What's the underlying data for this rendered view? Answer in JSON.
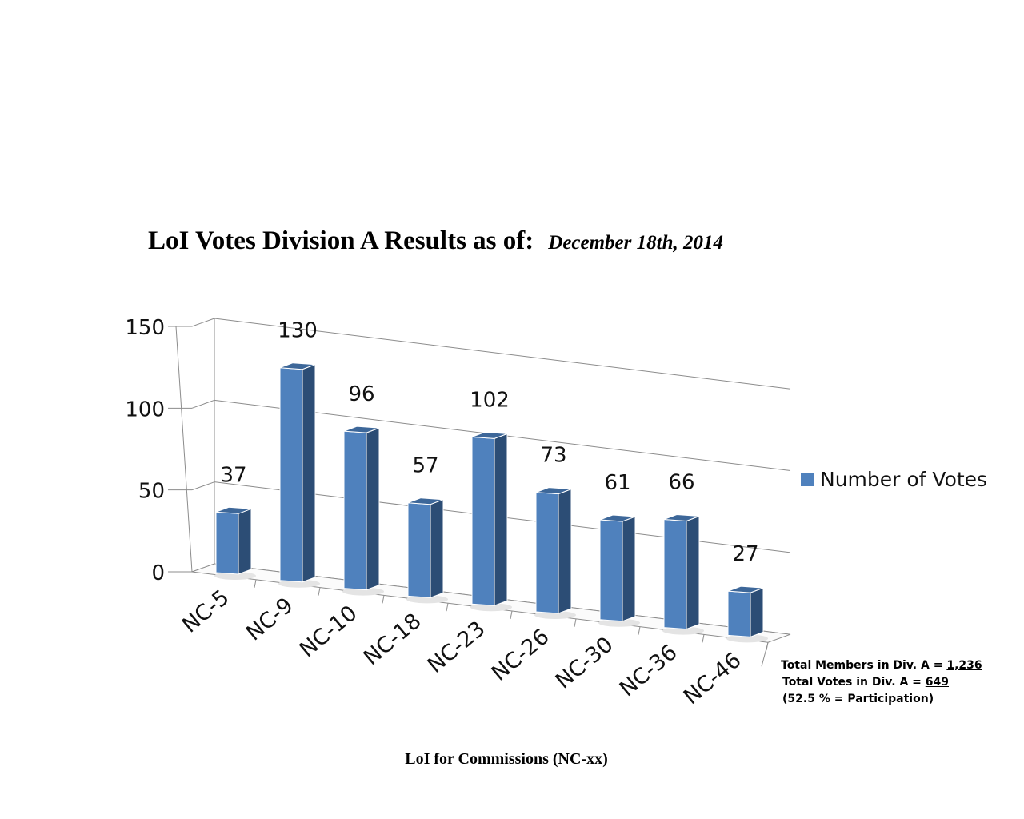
{
  "title": "LoI Votes Division A Results as of:",
  "date": "December 18th, 2014",
  "colors": {
    "bar_front": "#4f81bd",
    "bar_side": "#2c4d75",
    "bar_top": "#3d6799",
    "grid": "#8c8c8c"
  },
  "chart_data": {
    "type": "bar",
    "categories": [
      "NC-5",
      "NC-9",
      "NC-10",
      "NC-18",
      "NC-23",
      "NC-26",
      "NC-30",
      "NC-36",
      "NC-46"
    ],
    "series": [
      {
        "name": "Number of Votes",
        "values": [
          37,
          130,
          96,
          57,
          102,
          73,
          61,
          66,
          27
        ]
      }
    ],
    "yticks": [
      0,
      50,
      100,
      150
    ],
    "ylim": [
      0,
      150
    ],
    "xlabel": "LoI for Commissions (NC-xx)",
    "ylabel": "",
    "grid": true,
    "legend": "right",
    "style": "3d"
  },
  "stats": {
    "members_label": "Total Members in Div. A = ",
    "members_value": "1,236",
    "votes_label": "Total Votes in Div. A = ",
    "votes_value": "649",
    "participation": "(52.5 % = Participation)"
  }
}
